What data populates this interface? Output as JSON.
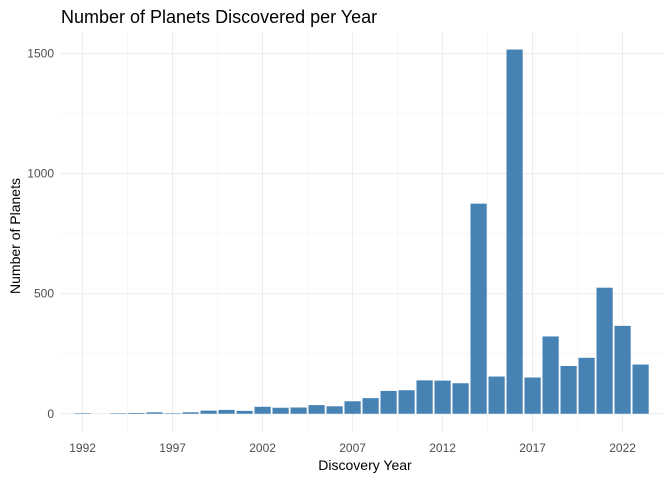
{
  "chart_data": {
    "type": "bar",
    "title": "Number of Planets Discovered per Year",
    "xlabel": "Discovery Year",
    "ylabel": "Number of Planets",
    "x": [
      1992,
      1994,
      1995,
      1996,
      1997,
      1998,
      1999,
      2000,
      2001,
      2002,
      2003,
      2004,
      2005,
      2006,
      2007,
      2008,
      2009,
      2010,
      2011,
      2012,
      2013,
      2014,
      2015,
      2016,
      2017,
      2018,
      2019,
      2020,
      2021,
      2022,
      2023
    ],
    "values": [
      2,
      1,
      3,
      6,
      1,
      6,
      13,
      16,
      12,
      29,
      25,
      26,
      36,
      31,
      52,
      65,
      95,
      98,
      139,
      138,
      127,
      875,
      155,
      1517,
      151,
      322,
      199,
      233,
      525,
      366,
      205
    ],
    "xlim": [
      1990.8,
      2024.3
    ],
    "ylim": [
      -76,
      1590
    ],
    "x_ticks": [
      "1992",
      "1997",
      "2002",
      "2007",
      "2012",
      "2017",
      "2022"
    ],
    "y_ticks": [
      "0",
      "500",
      "1000",
      "1500"
    ],
    "bar_color": "#4682B4",
    "grid": true,
    "legend": "none"
  }
}
